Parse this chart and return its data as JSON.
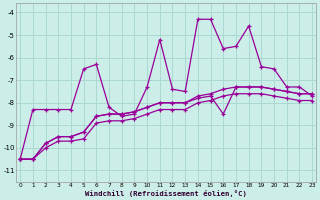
{
  "xlabel": "Windchill (Refroidissement éolien,°C)",
  "background_color": "#cceee8",
  "grid_color": "#aad8d0",
  "line_color": "#990099",
  "x_ticks": [
    0,
    1,
    2,
    3,
    4,
    5,
    6,
    7,
    8,
    9,
    10,
    11,
    12,
    13,
    14,
    15,
    16,
    17,
    18,
    19,
    20,
    21,
    22,
    23
  ],
  "y_ticks": [
    -4,
    -5,
    -6,
    -7,
    -8,
    -9,
    -10,
    -11
  ],
  "ylim": [
    -11.5,
    -3.6
  ],
  "xlim": [
    -0.3,
    23.3
  ],
  "series1_x": [
    0,
    1,
    2,
    3,
    4,
    5,
    6,
    7,
    8,
    9,
    10,
    11,
    12,
    13,
    14,
    15,
    16,
    17,
    18,
    19,
    20,
    21,
    22,
    23
  ],
  "series1_y": [
    -10.5,
    -8.3,
    -8.3,
    -8.3,
    -8.3,
    -6.5,
    -6.3,
    -8.2,
    -8.6,
    -8.5,
    -7.3,
    -5.2,
    -7.4,
    -7.5,
    -4.3,
    -4.3,
    -5.6,
    -5.5,
    -4.6,
    -6.4,
    -6.5,
    -7.3,
    -7.3,
    -7.7
  ],
  "series2_x": [
    0,
    1,
    2,
    3,
    4,
    5,
    6,
    7,
    8,
    9,
    10,
    11,
    12,
    13,
    14,
    15,
    16,
    17,
    18,
    19,
    20,
    21,
    22,
    23
  ],
  "series2_y": [
    -10.5,
    -10.5,
    -9.8,
    -9.5,
    -9.5,
    -9.3,
    -8.6,
    -8.5,
    -8.5,
    -8.4,
    -8.2,
    -8.0,
    -8.0,
    -8.0,
    -7.7,
    -7.6,
    -7.4,
    -7.3,
    -7.3,
    -7.3,
    -7.4,
    -7.5,
    -7.6,
    -7.6
  ],
  "series3_x": [
    0,
    1,
    2,
    3,
    4,
    5,
    6,
    7,
    8,
    9,
    10,
    11,
    12,
    13,
    14,
    15,
    16,
    17,
    18,
    19,
    20,
    21,
    22,
    23
  ],
  "series3_y": [
    -10.5,
    -10.5,
    -9.8,
    -9.5,
    -9.5,
    -9.3,
    -8.6,
    -8.5,
    -8.5,
    -8.4,
    -8.2,
    -8.0,
    -8.0,
    -8.0,
    -7.8,
    -7.7,
    -8.5,
    -7.3,
    -7.3,
    -7.3,
    -7.4,
    -7.5,
    -7.6,
    -7.6
  ],
  "series4_x": [
    0,
    1,
    2,
    3,
    4,
    5,
    6,
    7,
    8,
    9,
    10,
    11,
    12,
    13,
    14,
    15,
    16,
    17,
    18,
    19,
    20,
    21,
    22,
    23
  ],
  "series4_y": [
    -10.5,
    -10.5,
    -10.0,
    -9.7,
    -9.7,
    -9.6,
    -8.9,
    -8.8,
    -8.8,
    -8.7,
    -8.5,
    -8.3,
    -8.3,
    -8.3,
    -8.0,
    -7.9,
    -7.7,
    -7.6,
    -7.6,
    -7.6,
    -7.7,
    -7.8,
    -7.9,
    -7.9
  ]
}
